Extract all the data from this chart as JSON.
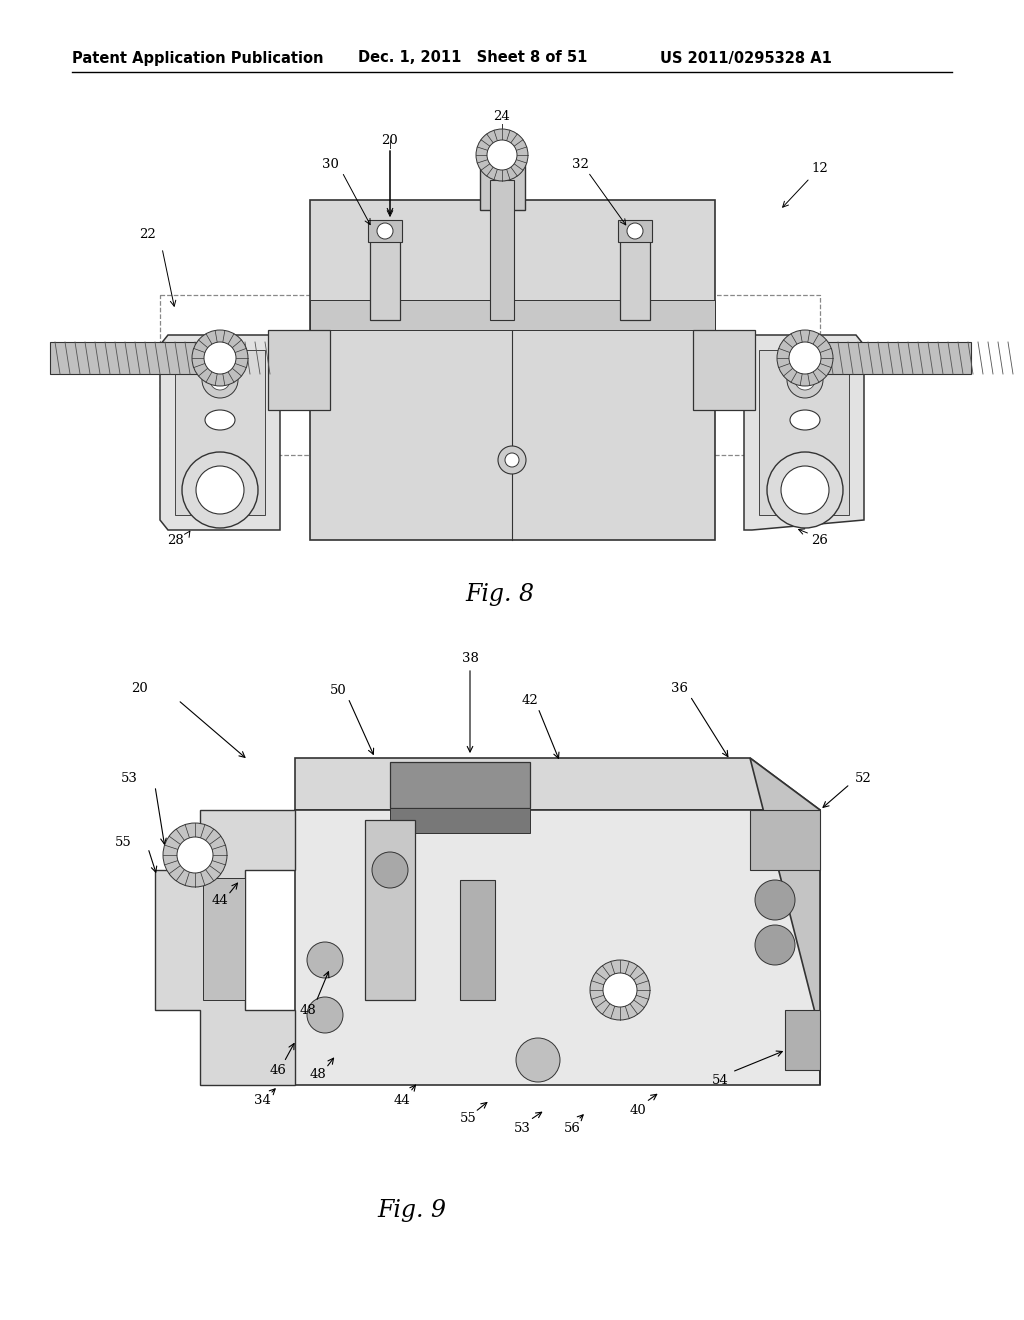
{
  "header_left": "Patent Application Publication",
  "header_center": "Dec. 1, 2011   Sheet 8 of 51",
  "header_right": "US 2011/0295328 A1",
  "fig8_label": "Fig. 8",
  "fig9_label": "Fig. 9",
  "background_color": "#ffffff",
  "header_font_size": 10.5,
  "fig_label_font_size": 17,
  "annotation_font_size": 9.5
}
